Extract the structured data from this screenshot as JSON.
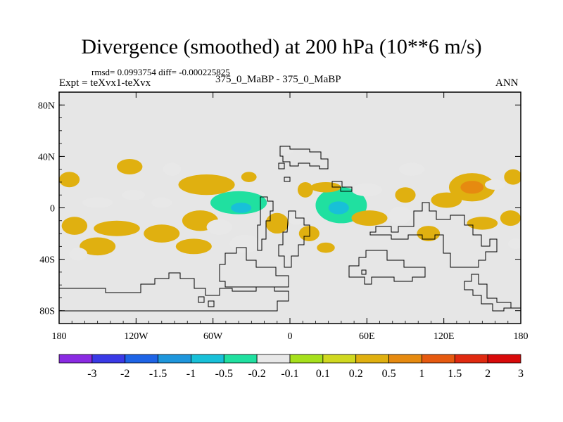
{
  "header": {
    "title": "Divergence (smoothed) at 200 hPa (10**6 m/s)",
    "stats": "rmsd= 0.0993754 diff= -0.000225825",
    "left_label": "Expt = teXvx1-teXvx",
    "center_label": "375_0_MaBP - 375_0_MaBP",
    "right_label": "ANN"
  },
  "chart_data": {
    "type": "contour-map",
    "projection": "cylindrical equidistant",
    "x_range": [
      -180,
      180
    ],
    "y_range": [
      -90,
      90
    ],
    "x_ticks": [
      {
        "value": -180,
        "label": "180"
      },
      {
        "value": -120,
        "label": "120W"
      },
      {
        "value": -60,
        "label": "60W"
      },
      {
        "value": 0,
        "label": "0"
      },
      {
        "value": 60,
        "label": "60E"
      },
      {
        "value": 120,
        "label": "120E"
      },
      {
        "value": 180,
        "label": "180"
      }
    ],
    "y_ticks": [
      {
        "value": 80,
        "label": "80N"
      },
      {
        "value": 40,
        "label": "40N"
      },
      {
        "value": 0,
        "label": "0"
      },
      {
        "value": -40,
        "label": "40S"
      },
      {
        "value": -80,
        "label": "80S"
      }
    ],
    "contour_levels": [
      -3,
      -2,
      -1.5,
      -1,
      -0.5,
      -0.2,
      -0.1,
      0.1,
      0.2,
      0.5,
      1,
      1.5,
      2,
      3
    ],
    "colorbar_colors": [
      "#8a2be2",
      "#3a3ae6",
      "#1e64e6",
      "#1e96dc",
      "#18c0d8",
      "#20e0a0",
      "#e8e8e8",
      "#a6e01c",
      "#d0d820",
      "#e0b010",
      "#e68a10",
      "#e65a10",
      "#e02a10",
      "#d80a0a"
    ],
    "background_color": "#e6e6e6",
    "features": [
      {
        "lon": -172,
        "lat": 22,
        "rx": 8,
        "ry": 6,
        "value": 0.2
      },
      {
        "lon": -168,
        "lat": -14,
        "rx": 10,
        "ry": 7,
        "value": 0.2
      },
      {
        "lon": -150,
        "lat": 4,
        "rx": 12,
        "ry": 4,
        "value": -0.2
      },
      {
        "lon": -135,
        "lat": -16,
        "rx": 18,
        "ry": 6,
        "value": 0.2
      },
      {
        "lon": -150,
        "lat": -30,
        "rx": 14,
        "ry": 7,
        "value": 0.2
      },
      {
        "lon": -165,
        "lat": -36,
        "rx": 7,
        "ry": 5,
        "value": -0.2
      },
      {
        "lon": -125,
        "lat": 32,
        "rx": 10,
        "ry": 6,
        "value": 0.2
      },
      {
        "lon": -122,
        "lat": 10,
        "rx": 9,
        "ry": 4,
        "value": -0.2
      },
      {
        "lon": -100,
        "lat": 4,
        "rx": 8,
        "ry": 4,
        "value": -0.2
      },
      {
        "lon": -100,
        "lat": -20,
        "rx": 14,
        "ry": 7,
        "value": 0.2
      },
      {
        "lon": -92,
        "lat": 30,
        "rx": 7,
        "ry": 5,
        "value": -0.2
      },
      {
        "lon": -75,
        "lat": -30,
        "rx": 14,
        "ry": 6,
        "value": 0.2
      },
      {
        "lon": -65,
        "lat": 18,
        "rx": 22,
        "ry": 8,
        "value": 0.2
      },
      {
        "lon": -70,
        "lat": -10,
        "rx": 14,
        "ry": 8,
        "value": 0.2
      },
      {
        "lon": -55,
        "lat": -15,
        "rx": 10,
        "ry": 6,
        "value": -0.2
      },
      {
        "lon": -40,
        "lat": 4,
        "rx": 22,
        "ry": 9,
        "value": -0.5
      },
      {
        "lon": -38,
        "lat": 0,
        "rx": 8,
        "ry": 4,
        "value": -1
      },
      {
        "lon": -32,
        "lat": 24,
        "rx": 6,
        "ry": 4,
        "value": 0.2
      },
      {
        "lon": -35,
        "lat": -28,
        "rx": 12,
        "ry": 7,
        "value": -0.2
      },
      {
        "lon": -10,
        "lat": -12,
        "rx": 9,
        "ry": 8,
        "value": 0.2
      },
      {
        "lon": 12,
        "lat": 14,
        "rx": 6,
        "ry": 6,
        "value": 0.2
      },
      {
        "lon": 5,
        "lat": -8,
        "rx": 7,
        "ry": 5,
        "value": -0.2
      },
      {
        "lon": 15,
        "lat": -20,
        "rx": 8,
        "ry": 6,
        "value": 0.2
      },
      {
        "lon": 28,
        "lat": -31,
        "rx": 7,
        "ry": 4,
        "value": 0.2
      },
      {
        "lon": 40,
        "lat": 2,
        "rx": 20,
        "ry": 14,
        "value": -0.5
      },
      {
        "lon": 38,
        "lat": 0,
        "rx": 8,
        "ry": 5,
        "value": -1
      },
      {
        "lon": 28,
        "lat": 16,
        "rx": 12,
        "ry": 4,
        "value": 0.2
      },
      {
        "lon": -2,
        "lat": 45,
        "rx": 5,
        "ry": 3,
        "value": -0.2
      },
      {
        "lon": 62,
        "lat": -8,
        "rx": 14,
        "ry": 6,
        "value": 0.2
      },
      {
        "lon": 60,
        "lat": 14,
        "rx": 12,
        "ry": 5,
        "value": -0.2
      },
      {
        "lon": 86,
        "lat": -6,
        "rx": 9,
        "ry": 7,
        "value": -0.2
      },
      {
        "lon": 90,
        "lat": 10,
        "rx": 8,
        "ry": 6,
        "value": 0.2
      },
      {
        "lon": 108,
        "lat": -20,
        "rx": 9,
        "ry": 6,
        "value": 0.2
      },
      {
        "lon": 95,
        "lat": 30,
        "rx": 10,
        "ry": 5,
        "value": -0.2
      },
      {
        "lon": 122,
        "lat": 6,
        "rx": 12,
        "ry": 6,
        "value": 0.2
      },
      {
        "lon": 142,
        "lat": 16,
        "rx": 18,
        "ry": 11,
        "value": 0.2
      },
      {
        "lon": 142,
        "lat": 16,
        "rx": 9,
        "ry": 5,
        "value": 0.5
      },
      {
        "lon": 160,
        "lat": 18,
        "rx": 8,
        "ry": 4,
        "value": -0.2
      },
      {
        "lon": 150,
        "lat": -12,
        "rx": 12,
        "ry": 5,
        "value": 0.2
      },
      {
        "lon": 172,
        "lat": -8,
        "rx": 8,
        "ry": 6,
        "value": 0.2
      },
      {
        "lon": 174,
        "lat": 24,
        "rx": 7,
        "ry": 6,
        "value": 0.2
      },
      {
        "lon": 176,
        "lat": -28,
        "rx": 6,
        "ry": 4,
        "value": -0.2
      }
    ]
  }
}
